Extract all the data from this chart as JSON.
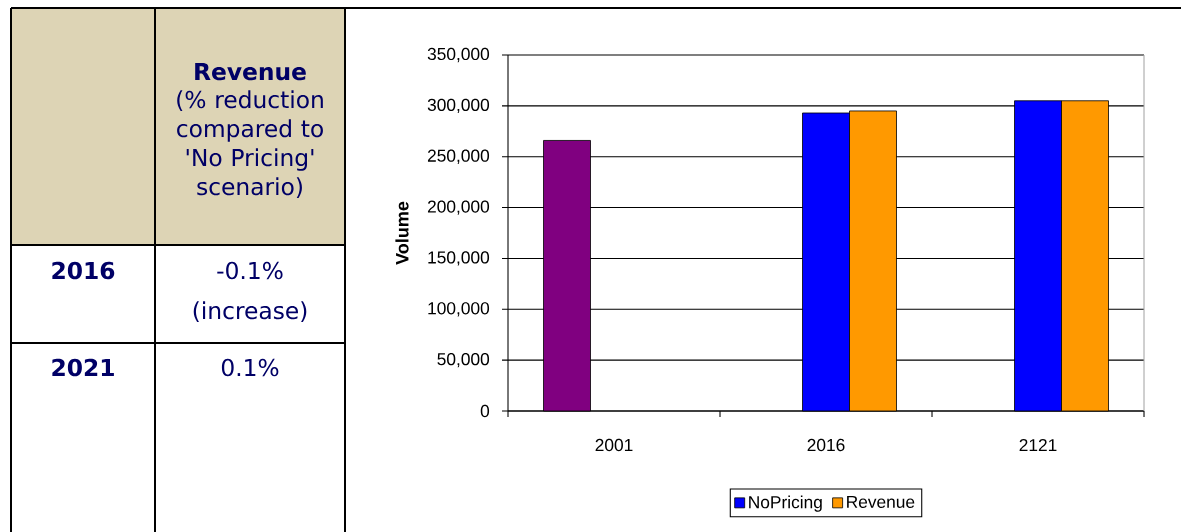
{
  "chart_data": [
    {
      "type": "other",
      "annotations": [
        "Revenue",
        "(% reduction compared to 'No Pricing' scenario)",
        "2016",
        "-0.1% (increase)",
        "2021",
        "0.1%"
      ]
    },
    {
      "type": "bar",
      "categories": [
        "2001",
        "2016",
        "2121"
      ],
      "series": [
        {
          "color": "#800080",
          "values": [
            266000,
            null,
            null
          ]
        },
        {
          "name": "NoPricing",
          "color": "#0000ff",
          "values": [
            null,
            293000,
            305000
          ]
        },
        {
          "name": "Revenue",
          "color": "#ff9900",
          "values": [
            null,
            295000,
            305000
          ]
        }
      ],
      "ylabel": "Volume",
      "ylim": [
        0,
        350000
      ],
      "yticks": [
        0,
        {
          "value": 50000,
          "label": "50,000"
        },
        {
          "value": 100000,
          "label": "100,000"
        },
        {
          "value": 150000,
          "label": "150,000"
        },
        {
          "value": 200000,
          "label": "200,000"
        },
        {
          "value": 250000,
          "label": "250,000"
        },
        {
          "value": 300000,
          "label": "300,000"
        },
        {
          "value": 350000,
          "label": "350,000"
        }
      ],
      "grid": "y",
      "legend": "bottom"
    }
  ]
}
